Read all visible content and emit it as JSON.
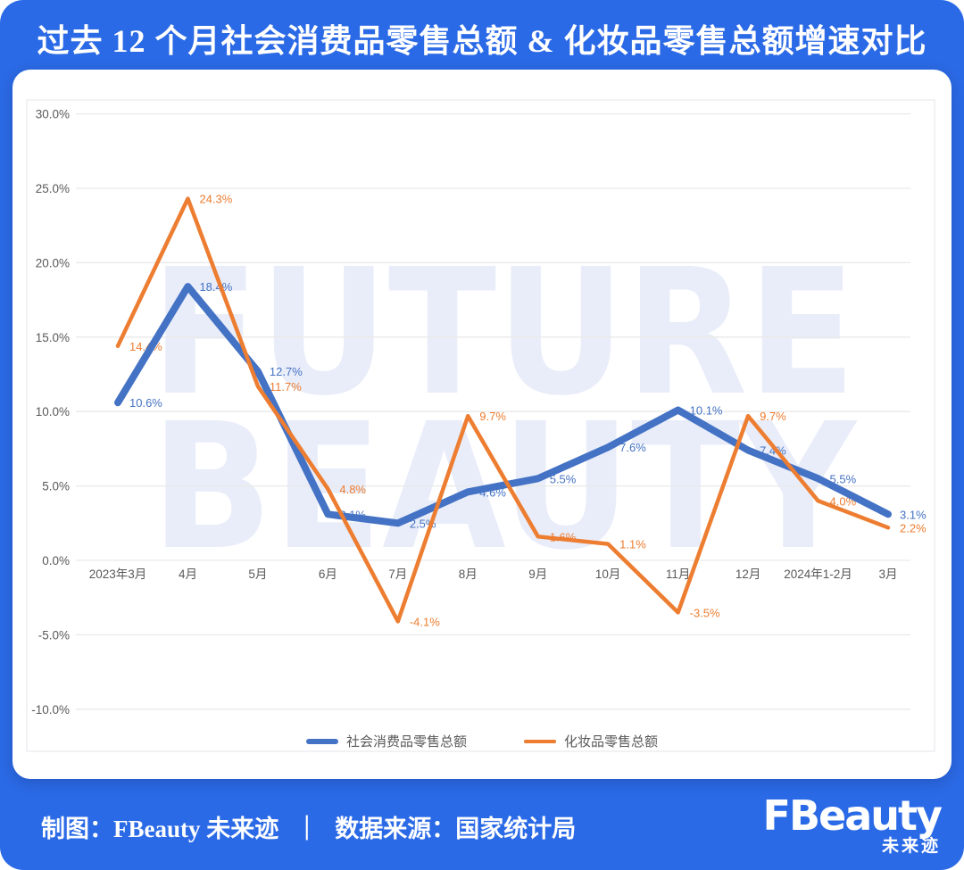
{
  "page": {
    "title": "过去 12 个月社会消费品零售总额 & 化妆品零售总额增速对比",
    "colors": {
      "background": "#2B6AE6",
      "card": "#FFFFFF",
      "grid": "#E9E9E9",
      "frame_border": "#E4E6EB",
      "axis_text": "#595959",
      "watermark": "#E9EDF9"
    }
  },
  "chart_data": {
    "type": "line",
    "categories": [
      "2023年3月",
      "4月",
      "5月",
      "6月",
      "7月",
      "8月",
      "9月",
      "10月",
      "11月",
      "12月",
      "2024年1-2月",
      "3月"
    ],
    "series": [
      {
        "name": "社会消费品零售总额",
        "color": "#4472C4",
        "stroke_width": 8,
        "values": [
          10.6,
          18.4,
          12.7,
          3.1,
          2.5,
          4.6,
          5.5,
          7.6,
          10.1,
          7.4,
          5.5,
          3.1
        ]
      },
      {
        "name": "化妆品零售总额",
        "color": "#ED7D31",
        "stroke_width": 4.5,
        "values": [
          14.4,
          24.3,
          11.7,
          4.8,
          -4.1,
          9.7,
          1.6,
          1.1,
          -3.5,
          9.7,
          4.0,
          2.2
        ]
      }
    ],
    "ylim": [
      -10,
      30
    ],
    "ytick_step": 5,
    "ytick_labels": [
      "30.0%",
      "25.0%",
      "20.0%",
      "15.0%",
      "10.0%",
      "5.0%",
      "0.0%",
      "-5.0%",
      "-10.0%"
    ],
    "grid": true,
    "legend_position": "bottom",
    "data_label_suffix": "%",
    "watermark_lines": [
      "FUTURE",
      "BEAUTY"
    ]
  },
  "footer": {
    "credit": "制图：FBeauty 未来迹",
    "separator": "｜",
    "source": "数据来源：国家统计局",
    "logo_text": "FBeauty",
    "logo_sub": "未来迹"
  }
}
